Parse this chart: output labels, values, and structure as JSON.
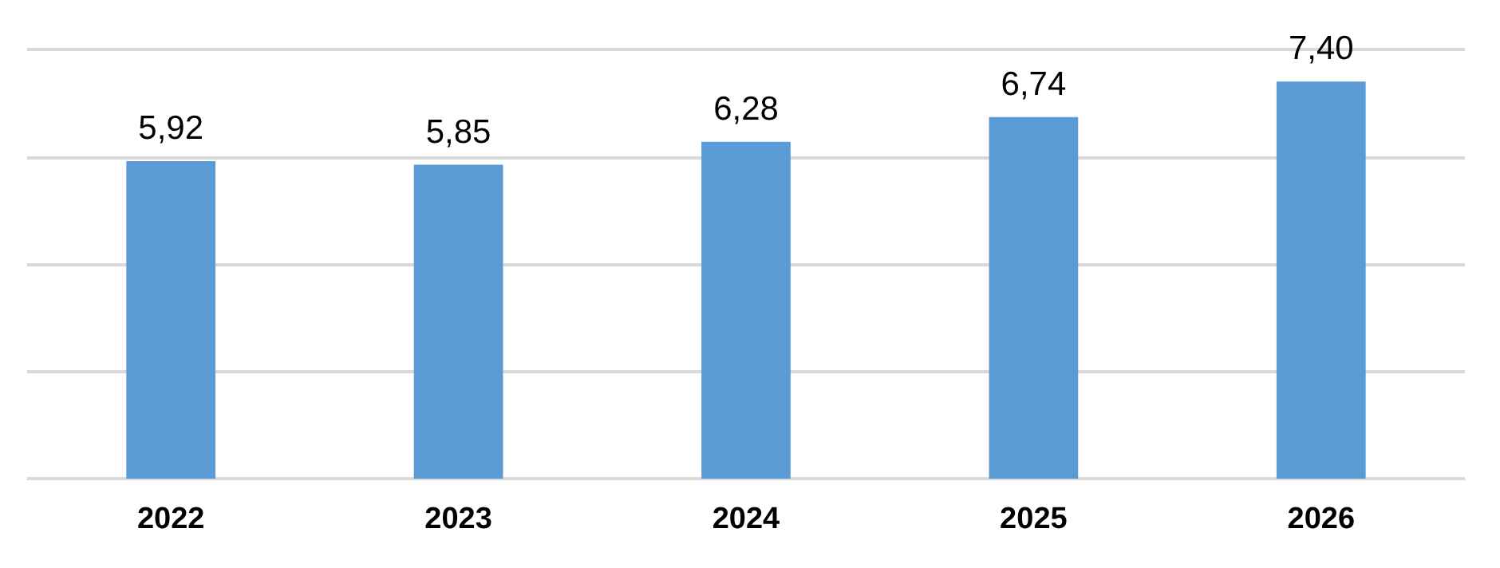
{
  "chart_data": {
    "type": "bar",
    "categories": [
      "2022",
      "2023",
      "2024",
      "2025",
      "2026"
    ],
    "values": [
      5.92,
      5.85,
      6.28,
      6.74,
      7.4
    ],
    "value_labels": [
      "5,92",
      "5,85",
      "6,28",
      "6,74",
      "7,40"
    ],
    "color": "#5b9bd5",
    "ylim": [
      0,
      8
    ],
    "yticks": [
      {
        "value": 0,
        "label": null
      },
      {
        "value": 2,
        "label": null
      },
      {
        "value": 4,
        "label": null
      },
      {
        "value": 6,
        "label": null
      },
      {
        "value": 8,
        "label": null
      }
    ],
    "grid": "y",
    "tick_labels": "x"
  }
}
